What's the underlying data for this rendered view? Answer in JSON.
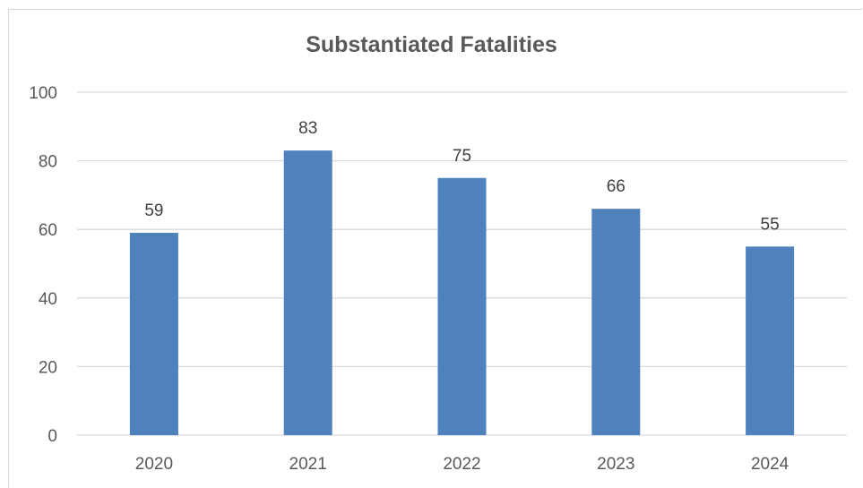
{
  "chart_data": {
    "type": "bar",
    "title": "Substantiated Fatalities",
    "xlabel": "",
    "ylabel": "",
    "categories": [
      "2020",
      "2021",
      "2022",
      "2023",
      "2024"
    ],
    "values": [
      59,
      83,
      75,
      66,
      55
    ],
    "data_labels": [
      "59",
      "83",
      "75",
      "66",
      "55"
    ],
    "yticks": [
      0,
      20,
      40,
      60,
      80,
      100
    ],
    "ytick_labels": [
      "0",
      "20",
      "40",
      "60",
      "80",
      "100"
    ],
    "ylim": [
      0,
      100
    ],
    "grid": true,
    "legend": "none",
    "colors": {
      "bar": "#4F81BD",
      "grid": "#d9d9d9",
      "axis_text": "#595959",
      "title": "#595959"
    }
  }
}
